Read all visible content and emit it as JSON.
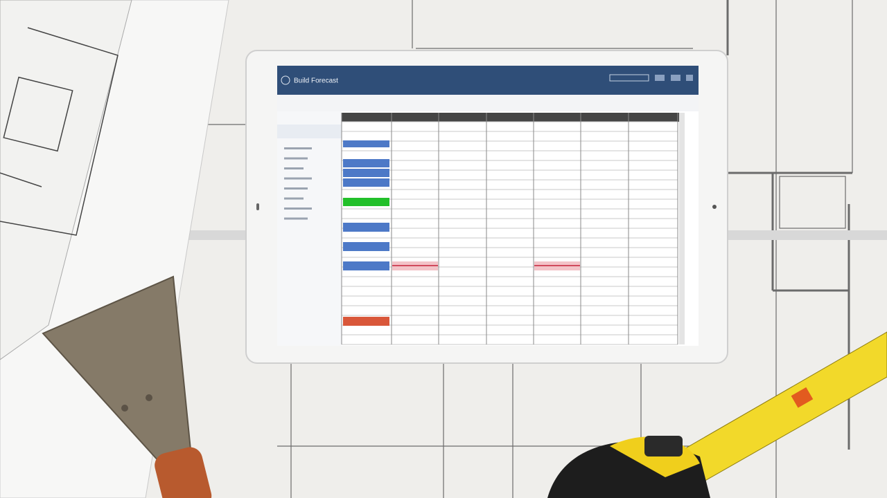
{
  "tablet": {
    "header": {
      "title": "Build Forecast"
    }
  }
}
